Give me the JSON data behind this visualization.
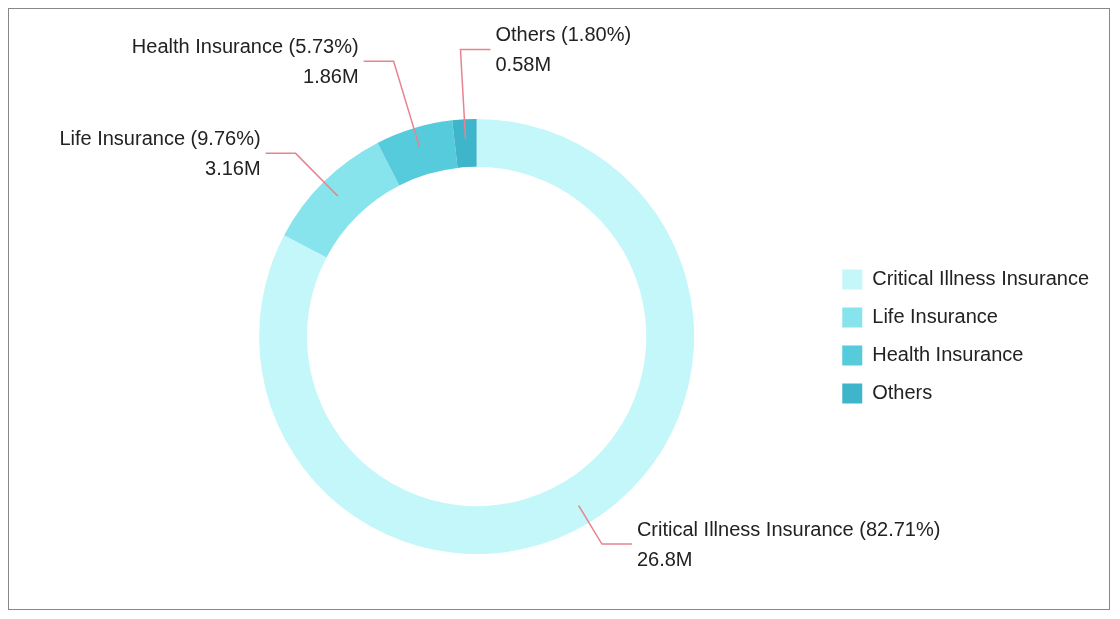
{
  "chart_data": {
    "type": "donut",
    "categories": [
      "Critical Illness Insurance",
      "Life Insurance",
      "Health Insurance",
      "Others"
    ],
    "values": [
      26.8,
      3.16,
      1.86,
      0.58
    ],
    "value_labels": [
      "26.8M",
      "3.16M",
      "1.86M",
      "0.58M"
    ],
    "annotations": [
      "(82.71%)",
      "(9.76%)",
      "(5.73%)",
      "(1.80%)"
    ],
    "colors": [
      "#c4f7f9",
      "#87e3ec",
      "#56cbdc",
      "#3fb5cc"
    ],
    "legend": "right"
  }
}
